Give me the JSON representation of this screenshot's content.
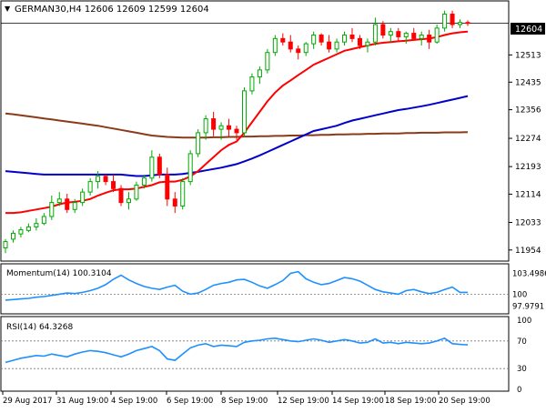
{
  "header": {
    "symbol_line": "GERMAN30,H4  12606 12609 12599 12604",
    "collapse_icon": "triangle-down-icon"
  },
  "main_panel": {
    "price_tag": "12604",
    "price_ticks": [
      "12604",
      "12513",
      "12435",
      "12356",
      "12274",
      "12193",
      "12114",
      "12033",
      "11954"
    ],
    "price_tag_color": "#000000"
  },
  "momentum_panel": {
    "label": "Momentum(14) 100.3104",
    "ticks": [
      "103.4986",
      "100",
      "97.9791"
    ]
  },
  "rsi_panel": {
    "label": "RSI(14) 64.3268",
    "ticks": [
      "100",
      "70",
      "30",
      "0"
    ]
  },
  "time_axis": {
    "labels": [
      "29 Aug 2017",
      "31 Aug 19:00",
      "4 Sep 19:00",
      "6 Sep 19:00",
      "8 Sep 19:00",
      "12 Sep 19:00",
      "14 Sep 19:00",
      "18 Sep 19:00",
      "20 Sep 19:00"
    ]
  },
  "colors": {
    "bull": "#00aa00",
    "bear": "#ff0000",
    "sma_fast": "#ff0000",
    "sma_mid": "#0000cc",
    "sma_slow": "#8b3a1a",
    "indicator": "#1e90ff",
    "grid_level": "#777777"
  },
  "chart_data": {
    "type": "candlestick",
    "price_axis_ticks": [
      12604,
      12513,
      12435,
      12356,
      12274,
      12193,
      12114,
      12033,
      11954
    ],
    "ylim": [
      11930,
      12660
    ],
    "candles": [
      [
        11960,
        11985,
        11945,
        11978
      ],
      [
        11985,
        12010,
        11975,
        12002
      ],
      [
        12000,
        12020,
        11990,
        12012
      ],
      [
        12010,
        12030,
        12005,
        12020
      ],
      [
        12020,
        12045,
        12010,
        12030
      ],
      [
        12030,
        12060,
        12025,
        12050
      ],
      [
        12050,
        12110,
        12040,
        12090
      ],
      [
        12090,
        12120,
        12080,
        12100
      ],
      [
        12100,
        12115,
        12060,
        12070
      ],
      [
        12070,
        12100,
        12060,
        12090
      ],
      [
        12090,
        12130,
        12080,
        12120
      ],
      [
        12120,
        12160,
        12110,
        12150
      ],
      [
        12150,
        12180,
        12130,
        12165
      ],
      [
        12165,
        12170,
        12140,
        12150
      ],
      [
        12150,
        12170,
        12120,
        12130
      ],
      [
        12130,
        12140,
        12080,
        12090
      ],
      [
        12090,
        12120,
        12070,
        12100
      ],
      [
        12100,
        12150,
        12095,
        12140
      ],
      [
        12140,
        12170,
        12130,
        12160
      ],
      [
        12160,
        12240,
        12150,
        12220
      ],
      [
        12220,
        12230,
        12160,
        12170
      ],
      [
        12170,
        12190,
        12080,
        12100
      ],
      [
        12100,
        12120,
        12060,
        12080
      ],
      [
        12080,
        12160,
        12070,
        12150
      ],
      [
        12150,
        12240,
        12140,
        12230
      ],
      [
        12230,
        12300,
        12220,
        12290
      ],
      [
        12290,
        12340,
        12270,
        12330
      ],
      [
        12330,
        12350,
        12280,
        12300
      ],
      [
        12300,
        12320,
        12270,
        12310
      ],
      [
        12310,
        12330,
        12280,
        12300
      ],
      [
        12300,
        12310,
        12270,
        12290
      ],
      [
        12290,
        12420,
        12280,
        12410
      ],
      [
        12410,
        12460,
        12400,
        12450
      ],
      [
        12450,
        12480,
        12430,
        12470
      ],
      [
        12470,
        12530,
        12460,
        12520
      ],
      [
        12520,
        12570,
        12510,
        12560
      ],
      [
        12560,
        12575,
        12540,
        12550
      ],
      [
        12550,
        12570,
        12520,
        12530
      ],
      [
        12530,
        12540,
        12500,
        12520
      ],
      [
        12520,
        12550,
        12510,
        12545
      ],
      [
        12545,
        12580,
        12530,
        12570
      ],
      [
        12570,
        12575,
        12540,
        12550
      ],
      [
        12550,
        12570,
        12520,
        12530
      ],
      [
        12530,
        12560,
        12520,
        12550
      ],
      [
        12550,
        12580,
        12540,
        12570
      ],
      [
        12570,
        12590,
        12550,
        12560
      ],
      [
        12560,
        12570,
        12530,
        12540
      ],
      [
        12540,
        12560,
        12520,
        12550
      ],
      [
        12550,
        12620,
        12540,
        12600
      ],
      [
        12600,
        12610,
        12560,
        12570
      ],
      [
        12570,
        12590,
        12550,
        12580
      ],
      [
        12580,
        12590,
        12550,
        12565
      ],
      [
        12565,
        12580,
        12545,
        12575
      ],
      [
        12575,
        12590,
        12555,
        12560
      ],
      [
        12560,
        12580,
        12540,
        12570
      ],
      [
        12570,
        12585,
        12530,
        12550
      ],
      [
        12550,
        12600,
        12545,
        12590
      ],
      [
        12590,
        12640,
        12580,
        12630
      ],
      [
        12630,
        12640,
        12590,
        12600
      ],
      [
        12600,
        12615,
        12590,
        12606
      ],
      [
        12606,
        12612,
        12596,
        12604
      ]
    ],
    "sma_fast": [
      12060,
      12060,
      12062,
      12066,
      12070,
      12074,
      12078,
      12085,
      12090,
      12092,
      12095,
      12100,
      12110,
      12118,
      12125,
      12128,
      12128,
      12130,
      12135,
      12140,
      12148,
      12150,
      12150,
      12155,
      12165,
      12180,
      12200,
      12220,
      12240,
      12255,
      12265,
      12290,
      12320,
      12350,
      12380,
      12405,
      12425,
      12440,
      12455,
      12470,
      12485,
      12495,
      12505,
      12515,
      12525,
      12530,
      12535,
      12540,
      12545,
      12548,
      12550,
      12552,
      12554,
      12556,
      12558,
      12560,
      12564,
      12570,
      12575,
      12578,
      12580
    ],
    "sma_mid": [
      12180,
      12178,
      12176,
      12174,
      12172,
      12170,
      12170,
      12170,
      12170,
      12170,
      12170,
      12170,
      12170,
      12170,
      12170,
      12170,
      12168,
      12166,
      12166,
      12168,
      12170,
      12170,
      12170,
      12172,
      12175,
      12178,
      12182,
      12186,
      12190,
      12195,
      12200,
      12208,
      12216,
      12225,
      12235,
      12245,
      12255,
      12265,
      12275,
      12285,
      12295,
      12300,
      12305,
      12310,
      12318,
      12325,
      12330,
      12335,
      12340,
      12345,
      12350,
      12355,
      12358,
      12362,
      12366,
      12370,
      12375,
      12380,
      12385,
      12390,
      12395
    ],
    "sma_slow": [
      12345,
      12343,
      12340,
      12337,
      12334,
      12331,
      12328,
      12325,
      12322,
      12319,
      12316,
      12313,
      12310,
      12306,
      12302,
      12298,
      12294,
      12290,
      12286,
      12282,
      12280,
      12278,
      12277,
      12276,
      12276,
      12276,
      12276,
      12277,
      12277,
      12278,
      12278,
      12279,
      12279,
      12280,
      12280,
      12281,
      12281,
      12282,
      12282,
      12283,
      12283,
      12284,
      12284,
      12285,
      12285,
      12286,
      12286,
      12287,
      12287,
      12288,
      12288,
      12288,
      12289,
      12289,
      12290,
      12290,
      12290,
      12291,
      12291,
      12291,
      12292
    ],
    "momentum_ylim": [
      97.0,
      104.5
    ],
    "momentum": [
      99.0,
      99.1,
      99.2,
      99.3,
      99.5,
      99.6,
      99.8,
      100.0,
      100.2,
      100.1,
      100.3,
      100.6,
      101.0,
      101.6,
      102.5,
      103.2,
      102.4,
      101.8,
      101.3,
      101.0,
      100.8,
      101.2,
      101.5,
      100.5,
      100.0,
      100.2,
      100.8,
      101.5,
      101.8,
      102.0,
      102.4,
      102.5,
      102.0,
      101.4,
      101.0,
      101.6,
      102.3,
      103.5,
      103.8,
      102.6,
      102.0,
      101.6,
      101.8,
      102.3,
      102.8,
      102.6,
      102.2,
      101.5,
      100.8,
      100.4,
      100.2,
      100.0,
      100.6,
      100.8,
      100.4,
      100.1,
      100.3,
      100.8,
      101.2,
      100.3,
      100.3104
    ],
    "rsi_ylim": [
      0,
      100
    ],
    "rsi": [
      39,
      42,
      45,
      47,
      49,
      48,
      51,
      49,
      47,
      51,
      54,
      56,
      55,
      53,
      50,
      47,
      51,
      56,
      59,
      62,
      56,
      44,
      42,
      51,
      60,
      64,
      66,
      62,
      64,
      63,
      62,
      68,
      70,
      71,
      73,
      74,
      72,
      70,
      69,
      71,
      73,
      71,
      68,
      70,
      72,
      70,
      67,
      68,
      73,
      67,
      68,
      66,
      68,
      67,
      66,
      67,
      70,
      74,
      66,
      65,
      64.3268
    ]
  }
}
